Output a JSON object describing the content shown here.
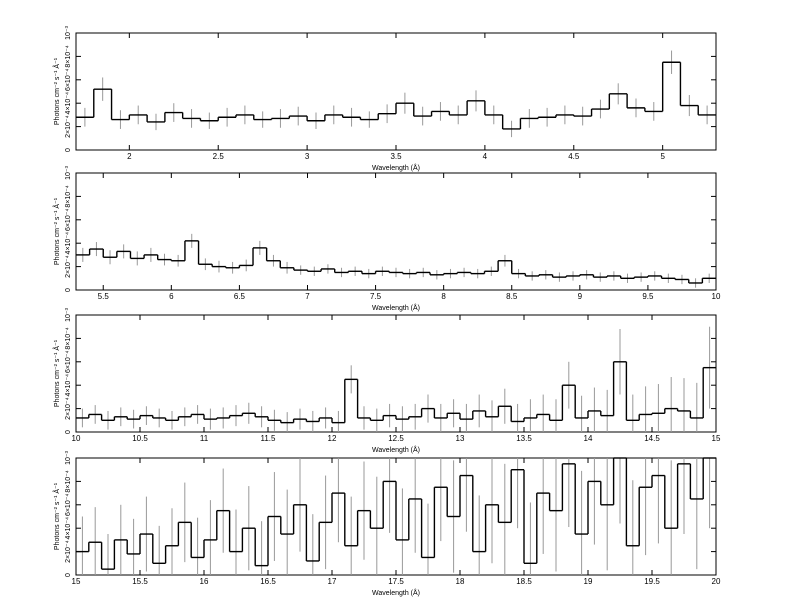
{
  "chart_data": [
    {
      "type": "line",
      "color": "#000000",
      "error_color": "#999999",
      "xlabel": "Wavelength (Å)",
      "ylabel": "Photons cm⁻² s⁻¹ Å⁻¹",
      "xlim": [
        1.7,
        5.3
      ],
      "xticks": [
        2,
        2.5,
        3,
        3.5,
        4,
        4.5,
        5
      ],
      "ylim": [
        0,
        0.001
      ],
      "yticks": [
        0,
        {
          "value": 0.0002,
          "label": "2×10⁻⁴"
        },
        {
          "value": 0.0004,
          "label": "4×10⁻⁴"
        },
        {
          "value": 0.0006,
          "label": "6×10⁻⁴"
        },
        {
          "value": 0.0008,
          "label": "8×10⁻⁴"
        },
        {
          "value": 0.001,
          "label": "10⁻³"
        }
      ],
      "x": [
        1.75,
        1.85,
        1.95,
        2.05,
        2.15,
        2.25,
        2.35,
        2.45,
        2.55,
        2.65,
        2.75,
        2.85,
        2.95,
        3.05,
        3.15,
        3.25,
        3.35,
        3.45,
        3.55,
        3.65,
        3.75,
        3.85,
        3.95,
        4.05,
        4.15,
        4.25,
        4.35,
        4.45,
        4.55,
        4.65,
        4.75,
        4.85,
        4.95,
        5.05,
        5.15,
        5.25
      ],
      "values": [
        0.00028,
        0.00052,
        0.00026,
        0.0003,
        0.00024,
        0.00032,
        0.00027,
        0.00025,
        0.00028,
        0.0003,
        0.00026,
        0.00027,
        0.00029,
        0.00025,
        0.0003,
        0.00028,
        0.00026,
        0.00031,
        0.0004,
        0.00029,
        0.00033,
        0.0003,
        0.00042,
        0.0003,
        0.00018,
        0.00027,
        0.00028,
        0.0003,
        0.00029,
        0.00035,
        0.00048,
        0.00036,
        0.00033,
        0.00075,
        0.00038,
        0.0003
      ],
      "errors": [
        8e-05,
        0.0001,
        8e-05,
        8e-05,
        7e-05,
        8e-05,
        8e-05,
        7e-05,
        8e-05,
        8e-05,
        7e-05,
        8e-05,
        8e-05,
        7e-05,
        8e-05,
        8e-05,
        7e-05,
        8e-05,
        9e-05,
        8e-05,
        8e-05,
        8e-05,
        9e-05,
        8e-05,
        7e-05,
        8e-05,
        8e-05,
        8e-05,
        8e-05,
        8e-05,
        9e-05,
        8e-05,
        8e-05,
        0.0001,
        9e-05,
        8e-05
      ]
    },
    {
      "type": "line",
      "color": "#000000",
      "error_color": "#999999",
      "xlabel": "Wavelength (Å)",
      "ylabel": "Photons cm⁻² s⁻¹ Å⁻¹",
      "xlim": [
        5.3,
        10
      ],
      "xticks": [
        5.5,
        6,
        6.5,
        7,
        7.5,
        8,
        8.5,
        9,
        9.5,
        10
      ],
      "ylim": [
        0,
        0.001
      ],
      "yticks": [
        0,
        {
          "value": 0.0002,
          "label": "2×10⁻⁴"
        },
        {
          "value": 0.0004,
          "label": "4×10⁻⁴"
        },
        {
          "value": 0.0006,
          "label": "6×10⁻⁴"
        },
        {
          "value": 0.0008,
          "label": "8×10⁻⁴"
        },
        {
          "value": 0.001,
          "label": "10⁻³"
        }
      ],
      "x": [
        5.35,
        5.45,
        5.55,
        5.65,
        5.75,
        5.85,
        5.95,
        6.05,
        6.15,
        6.25,
        6.35,
        6.45,
        6.55,
        6.65,
        6.75,
        6.85,
        6.95,
        7.05,
        7.15,
        7.25,
        7.35,
        7.45,
        7.55,
        7.65,
        7.75,
        7.85,
        7.95,
        8.05,
        8.15,
        8.25,
        8.35,
        8.45,
        8.55,
        8.65,
        8.75,
        8.85,
        8.95,
        9.05,
        9.15,
        9.25,
        9.35,
        9.45,
        9.55,
        9.65,
        9.75,
        9.85,
        9.95
      ],
      "values": [
        0.0003,
        0.00035,
        0.00028,
        0.00033,
        0.00027,
        0.0003,
        0.00026,
        0.00025,
        0.00042,
        0.00022,
        0.0002,
        0.00019,
        0.00021,
        0.00036,
        0.00025,
        0.00019,
        0.00017,
        0.00016,
        0.00018,
        0.00015,
        0.00016,
        0.00014,
        0.00016,
        0.00015,
        0.00014,
        0.00015,
        0.00013,
        0.00014,
        0.00015,
        0.00014,
        0.00016,
        0.00025,
        0.00014,
        0.00012,
        0.00013,
        0.00011,
        0.00012,
        0.00013,
        0.00011,
        0.00012,
        0.0001,
        0.00011,
        0.00012,
        0.0001,
        9e-05,
        6e-05,
        0.0001
      ],
      "errors": [
        6e-05,
        6e-05,
        6e-05,
        6e-05,
        6e-05,
        6e-05,
        5e-05,
        5e-05,
        6e-05,
        5e-05,
        5e-05,
        5e-05,
        5e-05,
        6e-05,
        5e-05,
        5e-05,
        4e-05,
        4e-05,
        4e-05,
        4e-05,
        4e-05,
        4e-05,
        4e-05,
        4e-05,
        4e-05,
        4e-05,
        4e-05,
        4e-05,
        4e-05,
        4e-05,
        4e-05,
        5e-05,
        4e-05,
        4e-05,
        4e-05,
        4e-05,
        4e-05,
        4e-05,
        4e-05,
        4e-05,
        4e-05,
        4e-05,
        4e-05,
        4e-05,
        4e-05,
        4e-05,
        4e-05
      ]
    },
    {
      "type": "line",
      "color": "#000000",
      "error_color": "#999999",
      "xlabel": "Wavelength (Å)",
      "ylabel": "Photons cm⁻² s⁻¹ Å⁻¹",
      "xlim": [
        10,
        15
      ],
      "xticks": [
        10,
        10.5,
        11,
        11.5,
        12,
        12.5,
        13,
        13.5,
        14,
        14.5,
        15
      ],
      "ylim": [
        0,
        0.001
      ],
      "yticks": [
        0,
        {
          "value": 0.0002,
          "label": "2×10⁻⁴"
        },
        {
          "value": 0.0004,
          "label": "4×10⁻⁴"
        },
        {
          "value": 0.0006,
          "label": "6×10⁻⁴"
        },
        {
          "value": 0.0008,
          "label": "8×10⁻⁴"
        },
        {
          "value": 0.001,
          "label": "10⁻³"
        }
      ],
      "x": [
        10.05,
        10.15,
        10.25,
        10.35,
        10.45,
        10.55,
        10.65,
        10.75,
        10.85,
        10.95,
        11.05,
        11.15,
        11.25,
        11.35,
        11.45,
        11.55,
        11.65,
        11.75,
        11.85,
        11.95,
        12.05,
        12.15,
        12.25,
        12.35,
        12.45,
        12.55,
        12.65,
        12.75,
        12.85,
        12.95,
        13.05,
        13.15,
        13.25,
        13.35,
        13.45,
        13.55,
        13.65,
        13.75,
        13.85,
        13.95,
        14.05,
        14.15,
        14.25,
        14.35,
        14.45,
        14.55,
        14.65,
        14.75,
        14.85,
        14.95
      ],
      "values": [
        0.00012,
        0.00015,
        0.0001,
        0.00013,
        0.00011,
        0.00014,
        0.00012,
        0.0001,
        0.00013,
        0.00015,
        0.00011,
        0.00012,
        0.00014,
        0.00016,
        0.00013,
        0.0001,
        8e-05,
        0.00011,
        9e-05,
        0.00012,
        8e-05,
        0.00045,
        0.00012,
        0.0001,
        0.00014,
        0.00011,
        0.00013,
        0.0002,
        0.00012,
        0.00016,
        0.00011,
        0.00018,
        0.00013,
        0.00022,
        9e-05,
        0.00012,
        0.00015,
        0.0001,
        0.0004,
        0.00012,
        0.00018,
        0.00014,
        0.0006,
        0.0001,
        0.00015,
        0.00016,
        0.0002,
        0.00018,
        0.00012,
        0.00055
      ],
      "errors": [
        8e-05,
        8e-05,
        8e-05,
        8e-05,
        8e-05,
        8e-05,
        8e-05,
        8e-05,
        8e-05,
        8e-05,
        9e-05,
        9e-05,
        9e-05,
        9e-05,
        9e-05,
        9e-05,
        9e-05,
        9e-05,
        9e-05,
        9e-05,
        0.0001,
        0.00012,
        0.0001,
        0.0001,
        0.0001,
        0.00011,
        0.00011,
        0.00012,
        0.00012,
        0.00012,
        0.00013,
        0.00014,
        0.00014,
        0.00015,
        0.00015,
        0.00016,
        0.00017,
        0.00018,
        0.0002,
        0.00019,
        0.0002,
        0.00022,
        0.00028,
        0.00022,
        0.00024,
        0.00025,
        0.00027,
        0.00028,
        0.0003,
        0.00035
      ]
    },
    {
      "type": "line",
      "color": "#000000",
      "error_color": "#999999",
      "xlabel": "Wavelength (Å)",
      "ylabel": "Photons cm⁻² s⁻¹ Å⁻¹",
      "xlim": [
        15,
        20
      ],
      "xticks": [
        15,
        15.5,
        16,
        16.5,
        17,
        17.5,
        18,
        18.5,
        19,
        19.5,
        20
      ],
      "ylim": [
        0,
        0.001
      ],
      "yticks": [
        0,
        {
          "value": 0.0002,
          "label": "2×10⁻⁴"
        },
        {
          "value": 0.0004,
          "label": "4×10⁻⁴"
        },
        {
          "value": 0.0006,
          "label": "6×10⁻⁴"
        },
        {
          "value": 0.0008,
          "label": "8×10⁻⁴"
        },
        {
          "value": 0.001,
          "label": "10⁻³"
        }
      ],
      "x": [
        15.05,
        15.15,
        15.25,
        15.35,
        15.45,
        15.55,
        15.65,
        15.75,
        15.85,
        15.95,
        16.05,
        16.15,
        16.25,
        16.35,
        16.45,
        16.55,
        16.65,
        16.75,
        16.85,
        16.95,
        17.05,
        17.15,
        17.25,
        17.35,
        17.45,
        17.55,
        17.65,
        17.75,
        17.85,
        17.95,
        18.05,
        18.15,
        18.25,
        18.35,
        18.45,
        18.55,
        18.65,
        18.75,
        18.85,
        18.95,
        19.05,
        19.15,
        19.25,
        19.35,
        19.45,
        19.55,
        19.65,
        19.75,
        19.85,
        19.95
      ],
      "values": [
        0.0002,
        0.00028,
        5e-05,
        0.0003,
        0.00018,
        0.00035,
        0.0001,
        0.00025,
        0.00045,
        0.00015,
        0.0003,
        0.00055,
        0.0002,
        0.0004,
        8e-05,
        0.0005,
        0.00035,
        0.0006,
        0.00012,
        0.00045,
        0.0007,
        0.00025,
        0.00055,
        0.0004,
        0.0008,
        0.0003,
        0.00065,
        0.00015,
        0.00075,
        0.0005,
        0.00085,
        0.0002,
        0.0006,
        0.00045,
        0.0009,
        0.0001,
        0.0007,
        0.00055,
        0.00095,
        0.00035,
        0.0008,
        0.0006,
        0.001,
        0.00025,
        0.00075,
        0.00085,
        0.0004,
        0.00095,
        0.00065,
        0.001
      ],
      "errors": [
        0.0003,
        0.0003,
        0.0003,
        0.0003,
        0.0003,
        0.00032,
        0.00032,
        0.00032,
        0.00034,
        0.00034,
        0.00034,
        0.00036,
        0.00036,
        0.00036,
        0.00038,
        0.00038,
        0.00038,
        0.0004,
        0.0004,
        0.0004,
        0.00042,
        0.00042,
        0.00042,
        0.00044,
        0.00044,
        0.00044,
        0.00046,
        0.00046,
        0.00046,
        0.00048,
        0.00048,
        0.00048,
        0.0005,
        0.0005,
        0.0005,
        0.00052,
        0.00052,
        0.00052,
        0.00054,
        0.00054,
        0.00054,
        0.00056,
        0.00056,
        0.00056,
        0.00058,
        0.00058,
        0.00058,
        0.0006,
        0.0006,
        0.0006
      ]
    }
  ]
}
